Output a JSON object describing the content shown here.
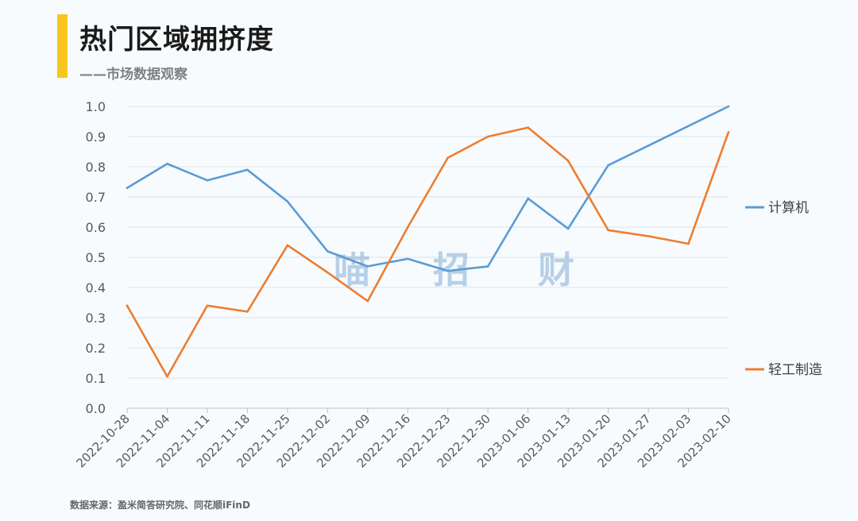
{
  "header": {
    "title": "热门区域拥挤度",
    "subtitle": "——市场数据观察"
  },
  "watermark": [
    "喵",
    "招",
    "财"
  ],
  "source": "数据来源：盈米简答研究院、同花顺iFinD",
  "colors": {
    "accent_bar": "#f7c51e",
    "series_computer": "#5b9bd5",
    "series_light_industry": "#ed7d31",
    "grid": "#dde3e8"
  },
  "chart_data": {
    "type": "line",
    "title": "热门区域拥挤度",
    "xlabel": "",
    "ylabel": "",
    "ylim": [
      0,
      1.0
    ],
    "yticks": [
      "0.0",
      "0.1",
      "0.2",
      "0.3",
      "0.4",
      "0.5",
      "0.6",
      "0.7",
      "0.8",
      "0.9",
      "1.0"
    ],
    "grid": true,
    "legend_position": "right",
    "x": [
      "2022-10-28",
      "2022-11-04",
      "2022-11-11",
      "2022-11-18",
      "2022-11-25",
      "2022-12-02",
      "2022-12-09",
      "2022-12-16",
      "2022-12-23",
      "2022-12-30",
      "2023-01-06",
      "2023-01-13",
      "2023-01-20",
      "2023-01-27",
      "2023-02-03",
      "2023-02-10"
    ],
    "series": [
      {
        "name": "计算机",
        "color": "#5b9bd5",
        "values": [
          0.73,
          0.81,
          0.755,
          0.79,
          0.685,
          0.52,
          0.47,
          0.495,
          0.455,
          0.47,
          0.695,
          0.595,
          0.805,
          0.87,
          0.935,
          1.0
        ]
      },
      {
        "name": "轻工制造",
        "color": "#ed7d31",
        "values": [
          0.34,
          0.105,
          0.34,
          0.32,
          0.54,
          0.45,
          0.355,
          0.6,
          0.83,
          0.9,
          0.93,
          0.82,
          0.59,
          0.57,
          0.545,
          0.915
        ]
      }
    ]
  }
}
